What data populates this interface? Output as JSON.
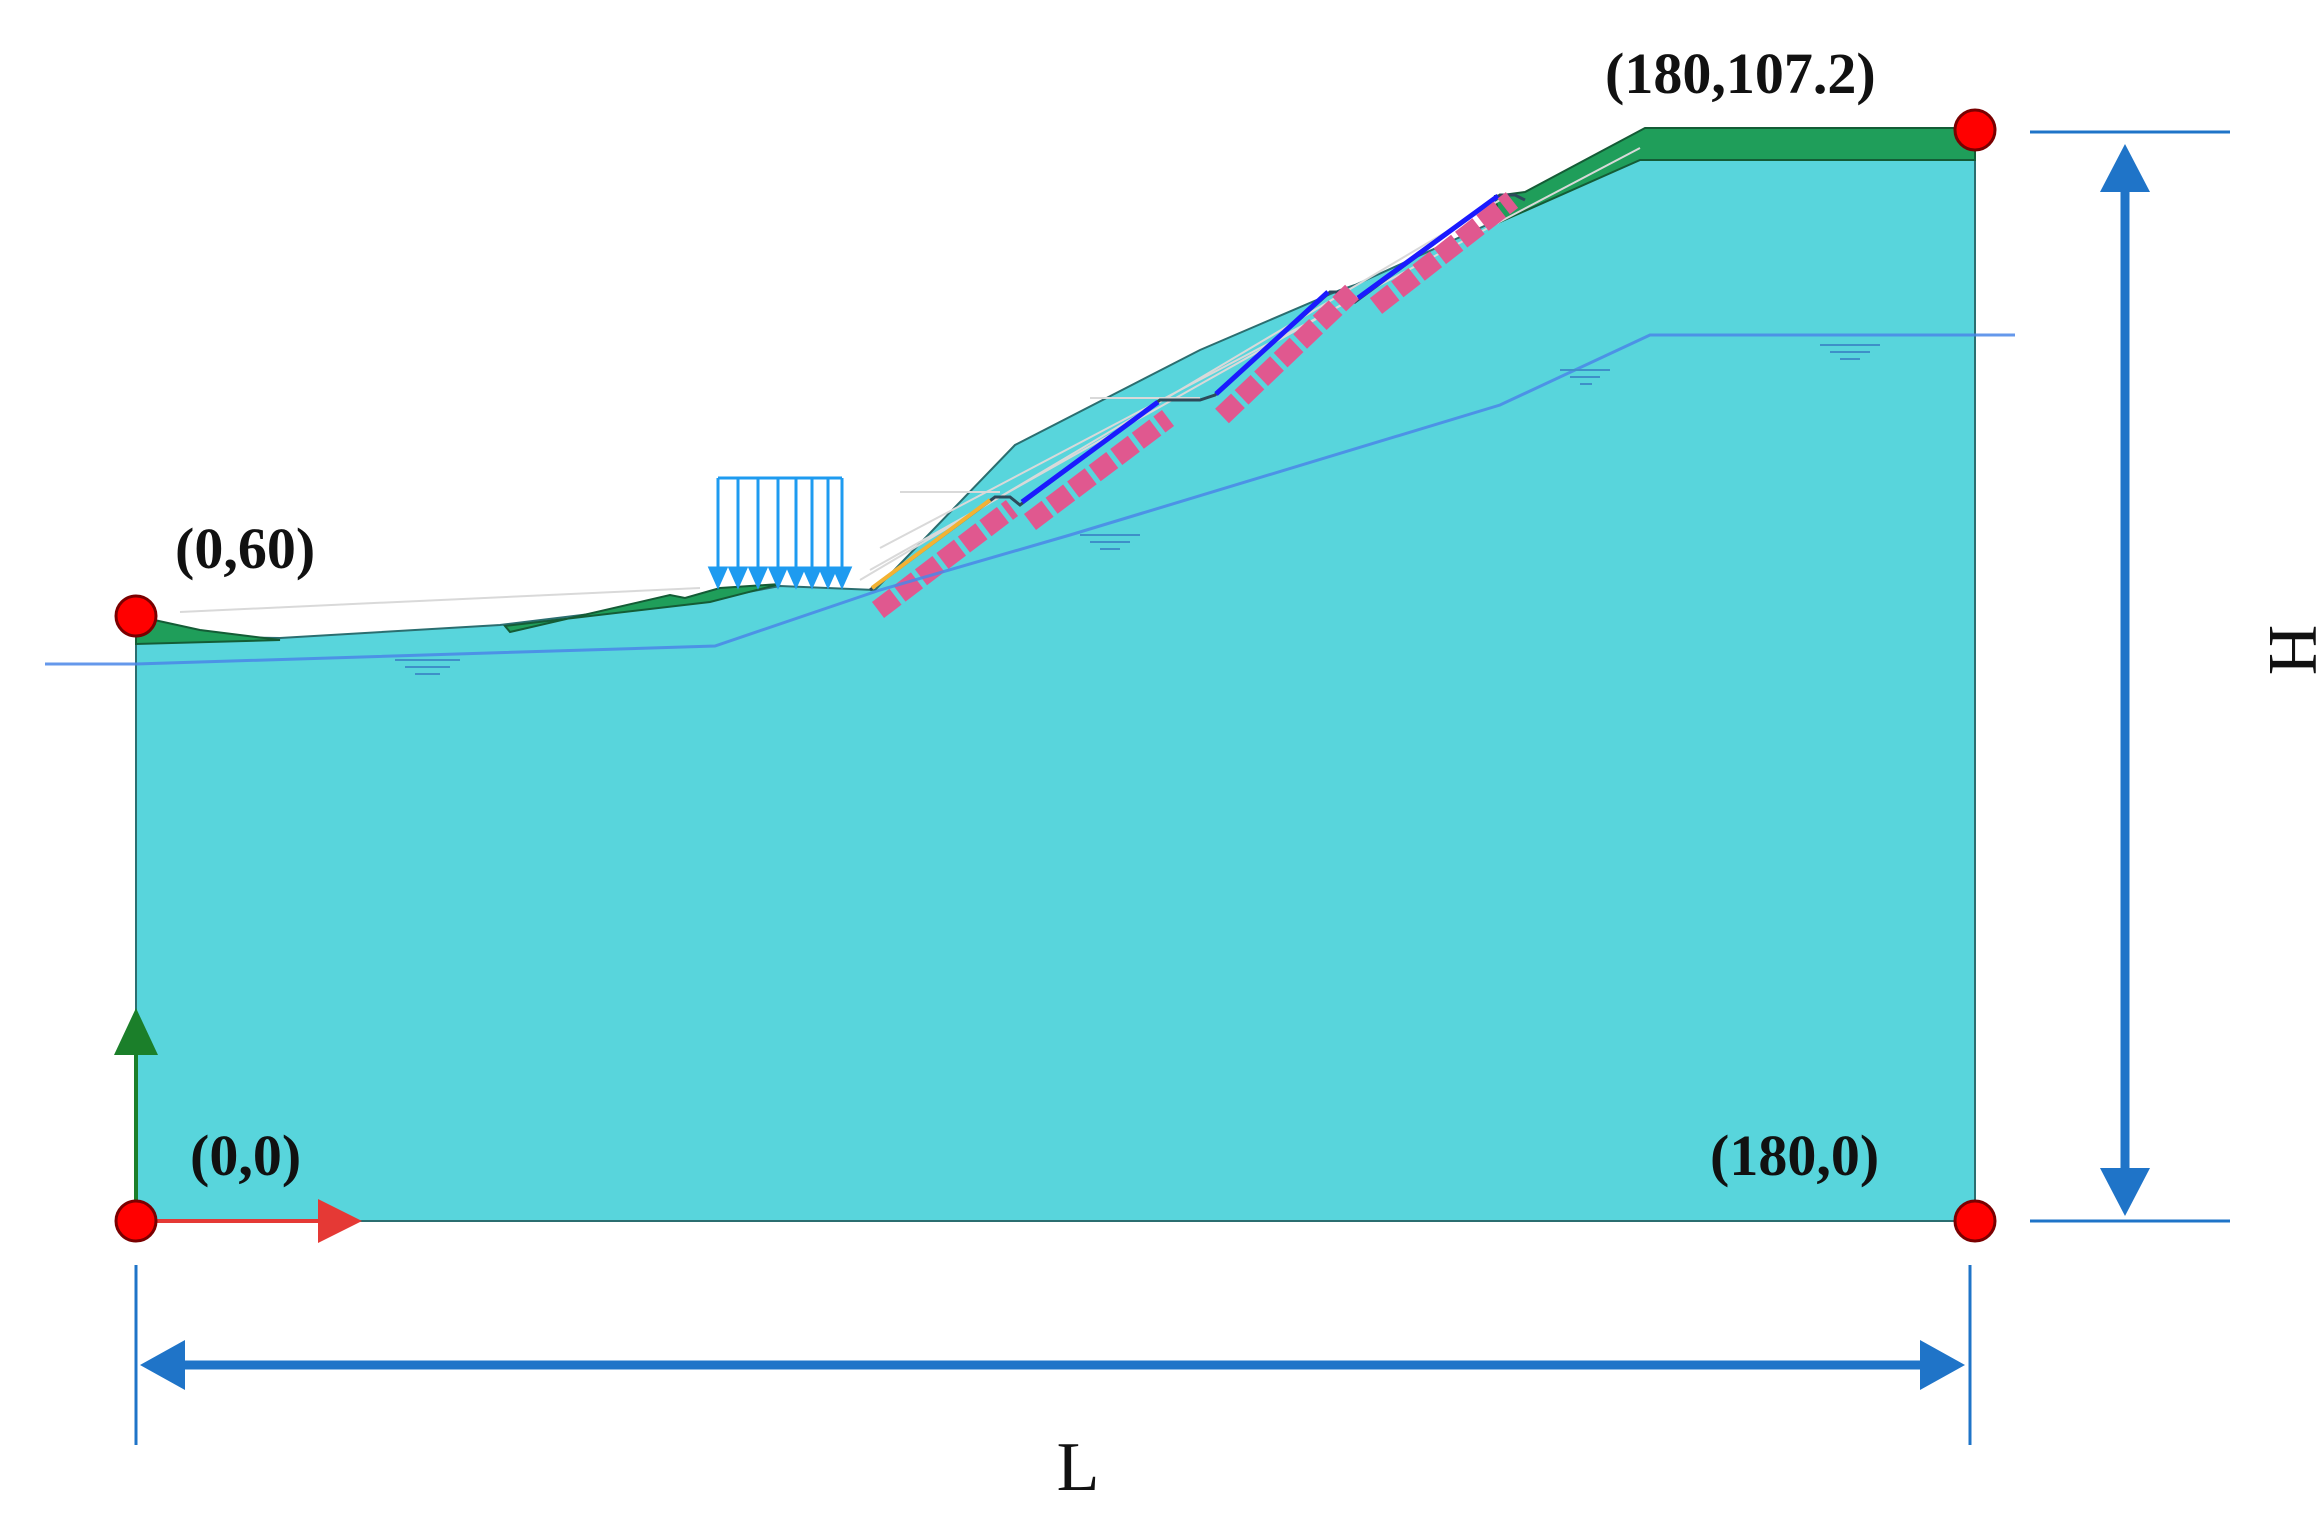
{
  "labels": {
    "top_left": "(0,60)",
    "top_right": "(180,107.2)",
    "bottom_left": "(0,0)",
    "bottom_right": "(180,0)",
    "width_dim": "L",
    "height_dim": "H"
  },
  "colors": {
    "soil": "#58D5DC",
    "surface_layer": "#1F9E5A",
    "water_table": "#4A86E8",
    "anchor": "#E0588F",
    "load_arrows": "#1E9BF0",
    "dimension": "#1F74C8",
    "corner_point": "#FF0000",
    "axis_x": "#E53935",
    "axis_y": "#1B7F2A"
  }
}
